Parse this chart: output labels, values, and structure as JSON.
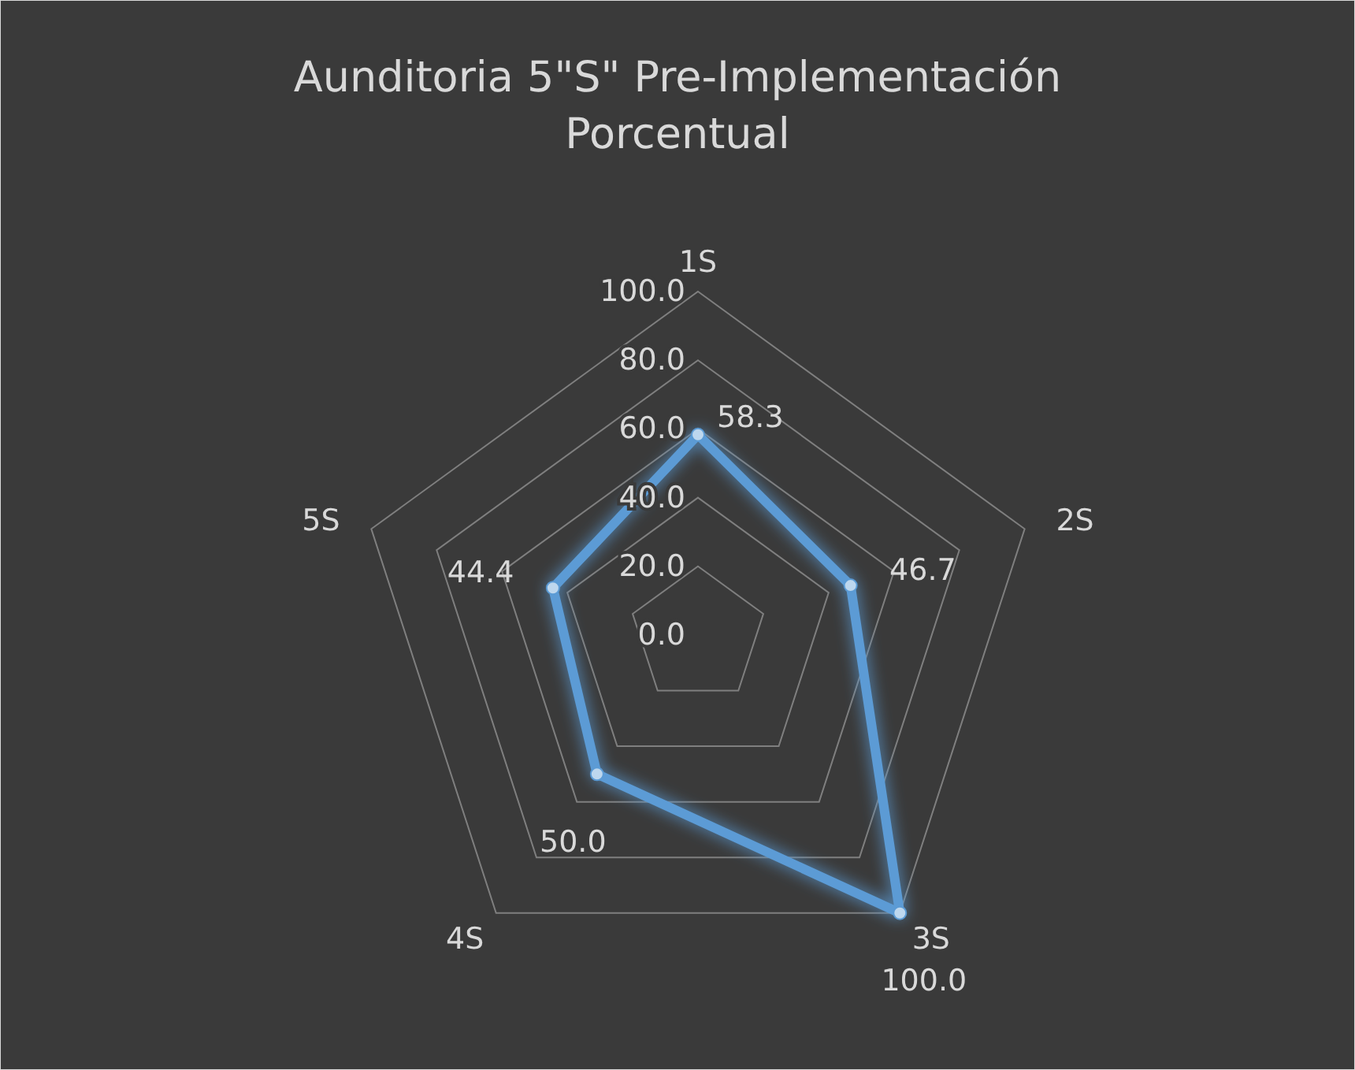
{
  "chart_data": {
    "type": "radar",
    "title": "Aunditoria 5\"S\" Pre-Implementación Porcentual",
    "categories": [
      "1S",
      "2S",
      "3S",
      "4S",
      "5S"
    ],
    "series": [
      {
        "color": "#5b9bd5",
        "values": [
          58.3,
          46.7,
          100,
          50,
          44.4
        ],
        "value_labels": [
          "58.3",
          "46.7",
          "100.0",
          "50.0",
          "44.4"
        ]
      }
    ],
    "ylim": [
      0,
      100
    ],
    "yticks": [
      {
        "value": 0,
        "label": "0.0"
      },
      {
        "value": 20,
        "label": "20.0"
      },
      {
        "value": 40,
        "label": "40.0"
      },
      {
        "value": 60,
        "label": "60.0"
      },
      {
        "value": 80,
        "label": "80.0"
      },
      {
        "value": 100,
        "label": "100.0"
      }
    ],
    "grid": true,
    "marker": "circle"
  }
}
